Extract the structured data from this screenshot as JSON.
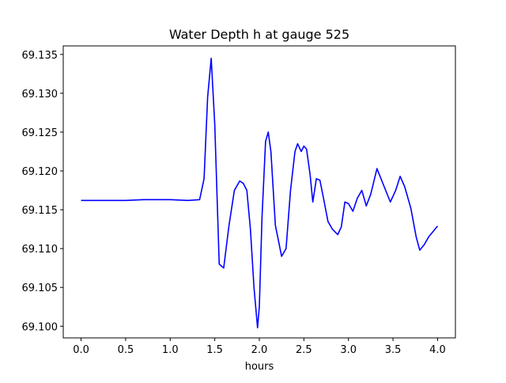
{
  "chart_data": {
    "type": "line",
    "title": "Water Depth h at gauge 525",
    "xlabel": "hours",
    "ylabel": "",
    "xlim": [
      -0.2,
      4.2
    ],
    "ylim": [
      69.0985,
      69.1361
    ],
    "x_ticks": [
      0.0,
      0.5,
      1.0,
      1.5,
      2.0,
      2.5,
      3.0,
      3.5,
      4.0
    ],
    "x_tick_labels": [
      "0.0",
      "0.5",
      "1.0",
      "1.5",
      "2.0",
      "2.5",
      "3.0",
      "3.5",
      "4.0"
    ],
    "y_ticks": [
      69.1,
      69.105,
      69.11,
      69.115,
      69.12,
      69.125,
      69.13,
      69.135
    ],
    "y_tick_labels": [
      "69.100",
      "69.105",
      "69.110",
      "69.115",
      "69.120",
      "69.125",
      "69.130",
      "69.135"
    ],
    "grid": false,
    "series": [
      {
        "color": "#0000ff",
        "x": [
          0.0,
          0.25,
          0.5,
          0.7,
          0.9,
          1.0,
          1.2,
          1.33,
          1.38,
          1.42,
          1.46,
          1.5,
          1.55,
          1.6,
          1.66,
          1.72,
          1.78,
          1.82,
          1.86,
          1.9,
          1.94,
          1.98,
          2.0,
          2.03,
          2.07,
          2.1,
          2.13,
          2.18,
          2.25,
          2.3,
          2.35,
          2.4,
          2.43,
          2.47,
          2.5,
          2.53,
          2.57,
          2.6,
          2.64,
          2.68,
          2.72,
          2.77,
          2.82,
          2.88,
          2.92,
          2.96,
          3.0,
          3.05,
          3.1,
          3.15,
          3.2,
          3.25,
          3.32,
          3.4,
          3.47,
          3.53,
          3.58,
          3.63,
          3.7,
          3.76,
          3.8,
          3.85,
          3.9,
          4.0
        ],
        "y": [
          69.1162,
          69.1162,
          69.1162,
          69.1163,
          69.1163,
          69.1163,
          69.1162,
          69.1163,
          69.119,
          69.1295,
          69.1345,
          69.126,
          69.108,
          69.1075,
          69.113,
          69.1175,
          69.1187,
          69.1184,
          69.1175,
          69.1125,
          69.105,
          69.0998,
          69.1025,
          69.114,
          69.1238,
          69.125,
          69.1225,
          69.113,
          69.109,
          69.11,
          69.1175,
          69.1225,
          69.1235,
          69.1225,
          69.1232,
          69.1228,
          69.1195,
          69.116,
          69.119,
          69.1188,
          69.1165,
          69.1135,
          69.1125,
          69.1118,
          69.1128,
          69.116,
          69.1158,
          69.1148,
          69.1165,
          69.1175,
          69.1155,
          69.117,
          69.1203,
          69.118,
          69.116,
          69.1175,
          69.1193,
          69.118,
          69.1152,
          69.1115,
          69.1098,
          69.1105,
          69.1115,
          69.1129
        ]
      }
    ]
  }
}
